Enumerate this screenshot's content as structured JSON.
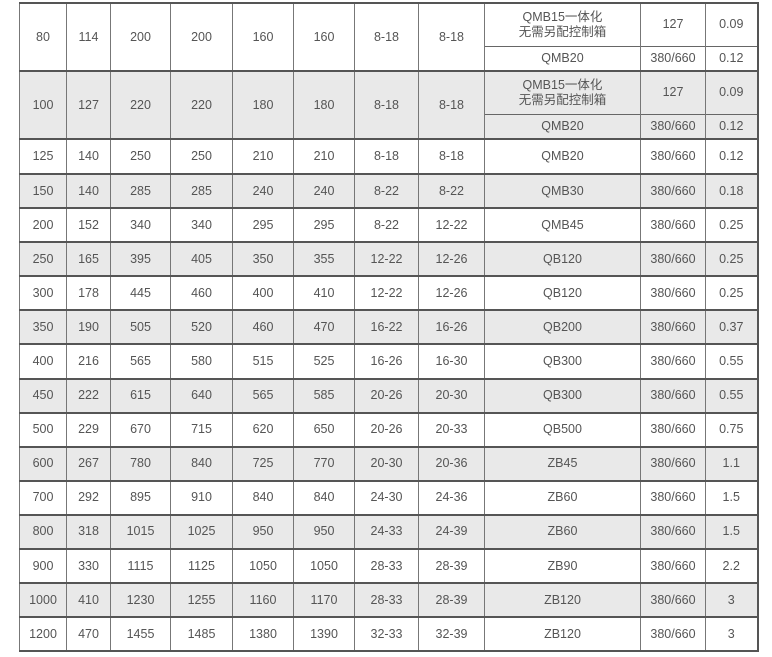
{
  "table": {
    "groups": [
      {
        "cols": [
          "80",
          "114",
          "200",
          "200",
          "160",
          "160",
          "8-18",
          "8-18"
        ],
        "shaded": false,
        "subrows": [
          [
            "QMB15一体化\n无需另配控制箱",
            "127",
            "0.09"
          ],
          [
            "QMB20",
            "380/660",
            "0.12"
          ]
        ]
      },
      {
        "cols": [
          "100",
          "127",
          "220",
          "220",
          "180",
          "180",
          "8-18",
          "8-18"
        ],
        "shaded": true,
        "subrows": [
          [
            "QMB15一体化\n无需另配控制箱",
            "127",
            "0.09"
          ],
          [
            "QMB20",
            "380/660",
            "0.12"
          ]
        ]
      },
      {
        "cols": [
          "125",
          "140",
          "250",
          "250",
          "210",
          "210",
          "8-18",
          "8-18"
        ],
        "shaded": false,
        "subrows": [
          [
            "QMB20",
            "380/660",
            "0.12"
          ]
        ]
      },
      {
        "cols": [
          "150",
          "140",
          "285",
          "285",
          "240",
          "240",
          "8-22",
          "8-22"
        ],
        "shaded": true,
        "subrows": [
          [
            "QMB30",
            "380/660",
            "0.18"
          ]
        ]
      },
      {
        "cols": [
          "200",
          "152",
          "340",
          "340",
          "295",
          "295",
          "8-22",
          "12-22"
        ],
        "shaded": false,
        "subrows": [
          [
            "QMB45",
            "380/660",
            "0.25"
          ]
        ]
      },
      {
        "cols": [
          "250",
          "165",
          "395",
          "405",
          "350",
          "355",
          "12-22",
          "12-26"
        ],
        "shaded": true,
        "subrows": [
          [
            "QB120",
            "380/660",
            "0.25"
          ]
        ]
      },
      {
        "cols": [
          "300",
          "178",
          "445",
          "460",
          "400",
          "410",
          "12-22",
          "12-26"
        ],
        "shaded": false,
        "subrows": [
          [
            "QB120",
            "380/660",
            "0.25"
          ]
        ]
      },
      {
        "cols": [
          "350",
          "190",
          "505",
          "520",
          "460",
          "470",
          "16-22",
          "16-26"
        ],
        "shaded": true,
        "subrows": [
          [
            "QB200",
            "380/660",
            "0.37"
          ]
        ]
      },
      {
        "cols": [
          "400",
          "216",
          "565",
          "580",
          "515",
          "525",
          "16-26",
          "16-30"
        ],
        "shaded": false,
        "subrows": [
          [
            "QB300",
            "380/660",
            "0.55"
          ]
        ]
      },
      {
        "cols": [
          "450",
          "222",
          "615",
          "640",
          "565",
          "585",
          "20-26",
          "20-30"
        ],
        "shaded": true,
        "subrows": [
          [
            "QB300",
            "380/660",
            "0.55"
          ]
        ]
      },
      {
        "cols": [
          "500",
          "229",
          "670",
          "715",
          "620",
          "650",
          "20-26",
          "20-33"
        ],
        "shaded": false,
        "subrows": [
          [
            "QB500",
            "380/660",
            "0.75"
          ]
        ]
      },
      {
        "cols": [
          "600",
          "267",
          "780",
          "840",
          "725",
          "770",
          "20-30",
          "20-36"
        ],
        "shaded": true,
        "subrows": [
          [
            "ZB45",
            "380/660",
            "1.1"
          ]
        ]
      },
      {
        "cols": [
          "700",
          "292",
          "895",
          "910",
          "840",
          "840",
          "24-30",
          "24-36"
        ],
        "shaded": false,
        "subrows": [
          [
            "ZB60",
            "380/660",
            "1.5"
          ]
        ]
      },
      {
        "cols": [
          "800",
          "318",
          "1015",
          "1025",
          "950",
          "950",
          "24-33",
          "24-39"
        ],
        "shaded": true,
        "subrows": [
          [
            "ZB60",
            "380/660",
            "1.5"
          ]
        ]
      },
      {
        "cols": [
          "900",
          "330",
          "1115",
          "1125",
          "1050",
          "1050",
          "28-33",
          "28-39"
        ],
        "shaded": false,
        "subrows": [
          [
            "ZB90",
            "380/660",
            "2.2"
          ]
        ]
      },
      {
        "cols": [
          "1000",
          "410",
          "1230",
          "1255",
          "1160",
          "1170",
          "28-33",
          "28-39"
        ],
        "shaded": true,
        "subrows": [
          [
            "ZB120",
            "380/660",
            "3"
          ]
        ]
      },
      {
        "cols": [
          "1200",
          "470",
          "1455",
          "1485",
          "1380",
          "1390",
          "32-33",
          "32-39"
        ],
        "shaded": false,
        "subrows": [
          [
            "ZB120",
            "380/660",
            "3"
          ]
        ]
      }
    ]
  }
}
